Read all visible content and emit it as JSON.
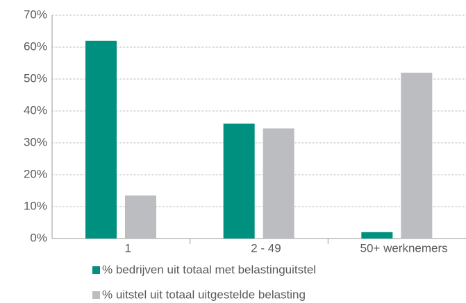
{
  "chart_data": {
    "type": "bar",
    "categories": [
      "1",
      "2 - 49",
      "50+ werknemers"
    ],
    "series": [
      {
        "name": "% bedrijven uit totaal met belastinguitstel",
        "color": "#00907f",
        "values": [
          62,
          36,
          2
        ]
      },
      {
        "name": "% uitstel uit totaal uitgestelde belasting",
        "color": "#bbbdc0",
        "values": [
          13.5,
          34.5,
          52
        ]
      }
    ],
    "ylim": [
      0,
      70
    ],
    "yticks": [
      {
        "value": 0,
        "label": "0%"
      },
      {
        "value": 10,
        "label": "10%"
      },
      {
        "value": 20,
        "label": "20%"
      },
      {
        "value": 30,
        "label": "30%"
      },
      {
        "value": 40,
        "label": "40%"
      },
      {
        "value": 50,
        "label": "50%"
      },
      {
        "value": 60,
        "label": "60%"
      },
      {
        "value": 70,
        "label": "70%"
      }
    ],
    "grid": true
  }
}
